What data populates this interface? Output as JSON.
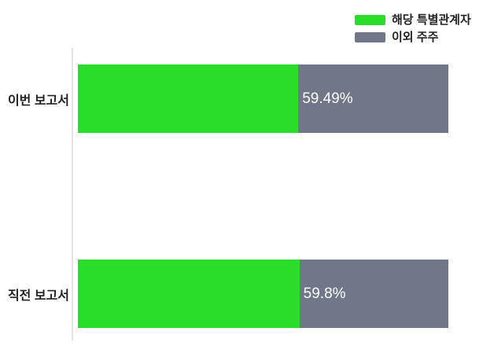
{
  "chart_data": {
    "type": "bar",
    "orientation": "horizontal",
    "stacked_percent": true,
    "title": "",
    "categories": [
      "이번 보고서",
      "직전 보고서"
    ],
    "series": [
      {
        "name": "해당 특별관계자",
        "values": [
          59.49,
          59.8
        ],
        "color": "#2bdd2b"
      },
      {
        "name": "이외 주주",
        "values": [
          40.51,
          40.2
        ],
        "color": "#717789"
      }
    ],
    "value_labels": [
      "59.49%",
      "59.8%"
    ],
    "xlim": [
      0,
      100
    ],
    "grid": false,
    "legend_position": "top-right",
    "axis_line_color": "#e3e3e3",
    "background_color": "#ffffff",
    "label_text_color": "#222222",
    "value_label_color": "#ffffff"
  }
}
